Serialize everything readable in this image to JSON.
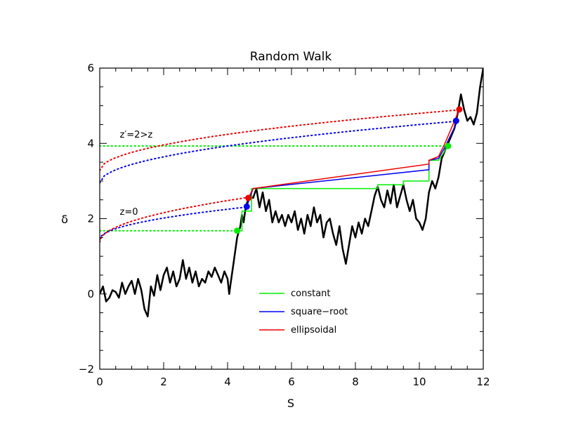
{
  "chart_data": {
    "type": "line",
    "title": "Random Walk",
    "xlabel": "S",
    "ylabel": "δ",
    "xlim": [
      0,
      12
    ],
    "ylim": [
      -2,
      6
    ],
    "xticks": [
      0,
      2,
      4,
      6,
      8,
      10,
      12
    ],
    "yticks": [
      -2,
      0,
      2,
      4,
      6
    ],
    "xtick_labels": [
      "0",
      "2",
      "4",
      "6",
      "8",
      "10",
      "12"
    ],
    "ytick_labels": [
      "−2",
      "0",
      "2",
      "4",
      "6"
    ],
    "grid": false,
    "legend_position": "lower-center",
    "colors": {
      "walk": "#000000",
      "constant": "#00ee00",
      "square_root": "#0000ee",
      "ellipsoidal": "#ee0000"
    },
    "annotations": [
      {
        "text": "z=0",
        "x": 1.0,
        "y": 2.1
      },
      {
        "text": "z′=2>z",
        "x": 1.0,
        "y": 4.15
      }
    ],
    "walk": [
      [
        0.0,
        0.0
      ],
      [
        0.1,
        0.2
      ],
      [
        0.2,
        -0.2
      ],
      [
        0.3,
        -0.1
      ],
      [
        0.4,
        0.1
      ],
      [
        0.5,
        0.05
      ],
      [
        0.6,
        -0.1
      ],
      [
        0.7,
        0.3
      ],
      [
        0.8,
        0.0
      ],
      [
        0.9,
        0.2
      ],
      [
        1.0,
        0.35
      ],
      [
        1.1,
        0.0
      ],
      [
        1.2,
        0.4
      ],
      [
        1.3,
        0.1
      ],
      [
        1.4,
        -0.4
      ],
      [
        1.5,
        -0.6
      ],
      [
        1.6,
        0.2
      ],
      [
        1.7,
        -0.05
      ],
      [
        1.8,
        0.5
      ],
      [
        1.9,
        0.1
      ],
      [
        2.0,
        0.5
      ],
      [
        2.1,
        0.7
      ],
      [
        2.2,
        0.3
      ],
      [
        2.3,
        0.6
      ],
      [
        2.4,
        0.2
      ],
      [
        2.5,
        0.4
      ],
      [
        2.6,
        0.9
      ],
      [
        2.7,
        0.4
      ],
      [
        2.8,
        0.7
      ],
      [
        2.9,
        0.3
      ],
      [
        3.0,
        0.6
      ],
      [
        3.1,
        0.2
      ],
      [
        3.2,
        0.4
      ],
      [
        3.3,
        0.3
      ],
      [
        3.4,
        0.6
      ],
      [
        3.5,
        0.45
      ],
      [
        3.6,
        0.7
      ],
      [
        3.7,
        0.5
      ],
      [
        3.8,
        0.3
      ],
      [
        3.9,
        0.6
      ],
      [
        4.0,
        0.4
      ],
      [
        4.05,
        0.0
      ],
      [
        4.1,
        0.3
      ],
      [
        4.2,
        0.9
      ],
      [
        4.3,
        1.5
      ],
      [
        4.4,
        1.8
      ],
      [
        4.45,
        2.1
      ],
      [
        4.5,
        1.9
      ],
      [
        4.55,
        2.2
      ],
      [
        4.6,
        2.4
      ],
      [
        4.7,
        2.6
      ],
      [
        4.8,
        2.55
      ],
      [
        4.9,
        2.8
      ],
      [
        5.0,
        2.3
      ],
      [
        5.1,
        2.7
      ],
      [
        5.2,
        2.2
      ],
      [
        5.3,
        2.5
      ],
      [
        5.4,
        1.9
      ],
      [
        5.5,
        2.2
      ],
      [
        5.6,
        1.9
      ],
      [
        5.7,
        2.1
      ],
      [
        5.8,
        1.8
      ],
      [
        5.9,
        2.1
      ],
      [
        6.0,
        1.9
      ],
      [
        6.1,
        2.2
      ],
      [
        6.2,
        1.7
      ],
      [
        6.3,
        2.0
      ],
      [
        6.4,
        1.6
      ],
      [
        6.5,
        2.1
      ],
      [
        6.6,
        1.8
      ],
      [
        6.7,
        2.3
      ],
      [
        6.8,
        1.9
      ],
      [
        6.9,
        2.1
      ],
      [
        7.0,
        1.5
      ],
      [
        7.1,
        1.9
      ],
      [
        7.2,
        2.0
      ],
      [
        7.3,
        1.6
      ],
      [
        7.4,
        1.3
      ],
      [
        7.5,
        1.8
      ],
      [
        7.6,
        1.2
      ],
      [
        7.7,
        0.8
      ],
      [
        7.8,
        1.3
      ],
      [
        7.9,
        1.8
      ],
      [
        8.0,
        1.5
      ],
      [
        8.1,
        1.9
      ],
      [
        8.2,
        1.6
      ],
      [
        8.3,
        2.0
      ],
      [
        8.4,
        1.8
      ],
      [
        8.5,
        2.2
      ],
      [
        8.6,
        2.6
      ],
      [
        8.7,
        2.85
      ],
      [
        8.8,
        2.5
      ],
      [
        8.9,
        2.3
      ],
      [
        9.0,
        2.75
      ],
      [
        9.1,
        2.4
      ],
      [
        9.2,
        2.9
      ],
      [
        9.3,
        2.3
      ],
      [
        9.4,
        2.6
      ],
      [
        9.5,
        2.9
      ],
      [
        9.6,
        2.5
      ],
      [
        9.7,
        2.2
      ],
      [
        9.8,
        2.5
      ],
      [
        9.9,
        2.0
      ],
      [
        10.0,
        1.9
      ],
      [
        10.1,
        1.7
      ],
      [
        10.2,
        2.0
      ],
      [
        10.3,
        2.7
      ],
      [
        10.4,
        3.0
      ],
      [
        10.5,
        2.8
      ],
      [
        10.6,
        3.1
      ],
      [
        10.7,
        3.6
      ],
      [
        10.8,
        3.8
      ],
      [
        10.9,
        4.0
      ],
      [
        11.0,
        4.2
      ],
      [
        11.1,
        4.4
      ],
      [
        11.2,
        4.8
      ],
      [
        11.3,
        5.3
      ],
      [
        11.4,
        4.9
      ],
      [
        11.5,
        4.6
      ],
      [
        11.6,
        4.7
      ],
      [
        11.7,
        4.5
      ],
      [
        11.8,
        4.8
      ],
      [
        11.9,
        5.5
      ],
      [
        12.0,
        6.0
      ]
    ],
    "series": [
      {
        "name": "constant",
        "barrier_z0": 1.68,
        "barrier_z2": 3.93,
        "path": [
          [
            4.3,
            1.68
          ],
          [
            4.3,
            1.68
          ],
          [
            4.45,
            1.68
          ],
          [
            4.45,
            2.2
          ],
          [
            4.75,
            2.2
          ],
          [
            4.75,
            2.8
          ],
          [
            8.7,
            2.8
          ],
          [
            8.7,
            2.9
          ],
          [
            9.5,
            2.9
          ],
          [
            9.5,
            3.0
          ],
          [
            10.3,
            3.0
          ],
          [
            10.3,
            3.55
          ],
          [
            10.6,
            3.55
          ],
          [
            10.9,
            3.93
          ]
        ],
        "first_crossing_z0": [
          4.3,
          1.68
        ],
        "first_crossing_z2": [
          10.9,
          3.93
        ]
      },
      {
        "name": "square-root",
        "barrier_z0_start": 1.45,
        "barrier_z2_start": 2.95,
        "path": [
          [
            4.6,
            2.32
          ],
          [
            4.8,
            2.8
          ],
          [
            10.3,
            3.3
          ],
          [
            10.3,
            3.55
          ],
          [
            10.6,
            3.6
          ],
          [
            10.8,
            3.9
          ],
          [
            11.2,
            4.6
          ]
        ],
        "first_crossing_z0": [
          4.6,
          2.32
        ],
        "first_crossing_z2": [
          11.15,
          4.6
        ]
      },
      {
        "name": "ellipsoidal",
        "barrier_z0_start": 1.38,
        "barrier_z2_start": 3.28,
        "path": [
          [
            4.65,
            2.55
          ],
          [
            4.8,
            2.8
          ],
          [
            10.3,
            3.45
          ],
          [
            10.3,
            3.55
          ],
          [
            10.6,
            3.65
          ],
          [
            10.8,
            4.0
          ],
          [
            11.25,
            4.9
          ]
        ],
        "first_crossing_z0": [
          4.65,
          2.55
        ],
        "first_crossing_z2": [
          11.25,
          4.9
        ]
      }
    ],
    "legend": [
      {
        "label": "constant",
        "color": "#00ee00"
      },
      {
        "label": "square−root",
        "color": "#0000ee"
      },
      {
        "label": "ellipsoidal",
        "color": "#ee0000"
      }
    ]
  }
}
